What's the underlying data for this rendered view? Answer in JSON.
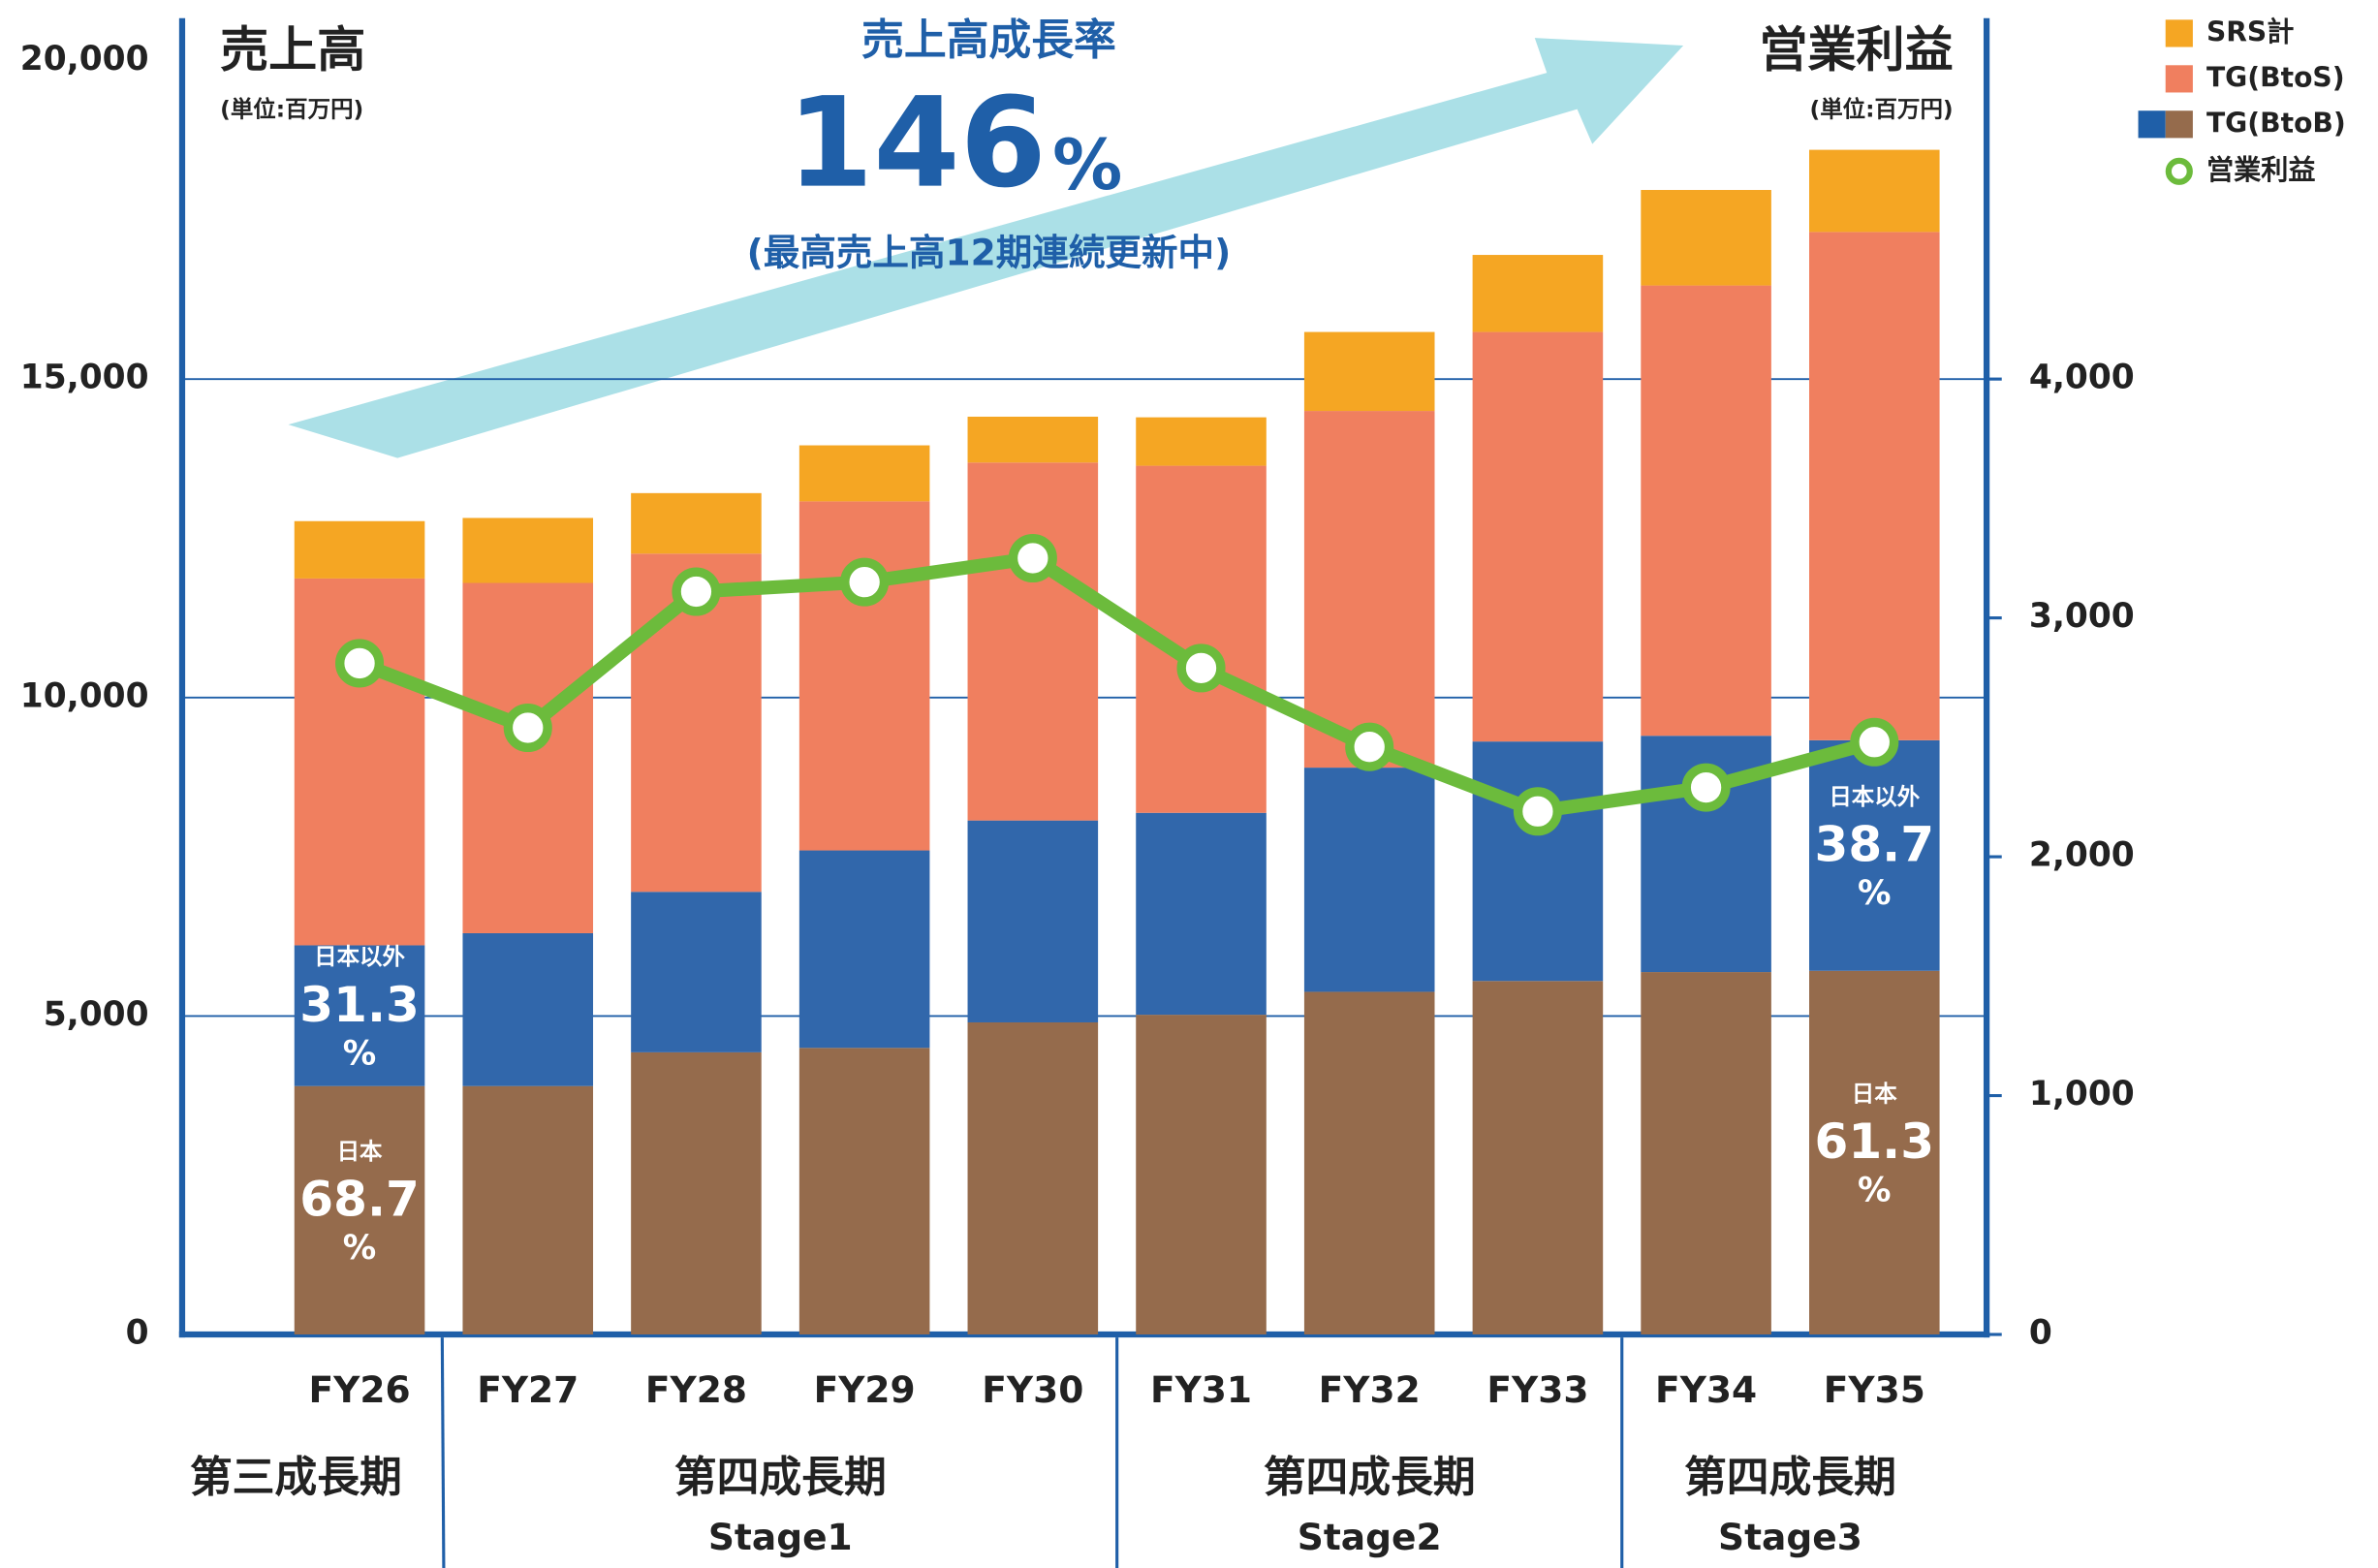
{
  "chart_data": {
    "type": "stacked_bar_line",
    "title": "売上高",
    "unit_note": "(単位:百万円)",
    "y2_title": "営業利益",
    "y2_unit_note": "(単位:百万円)",
    "growth": {
      "label": "売上高成長率",
      "value": 146,
      "unit": "%",
      "note": "(最高売上高12期連続更新中)"
    },
    "categories": [
      "FY26",
      "FY27",
      "FY28",
      "FY29",
      "FY30",
      "FY31",
      "FY32",
      "FY33",
      "FY34",
      "FY35"
    ],
    "groups": [
      {
        "label": "第三成長期",
        "count": 1
      },
      {
        "label": "第四成長期",
        "sub": "Stage1",
        "count": 4
      },
      {
        "label": "第四成長期",
        "sub": "Stage2",
        "count": 3
      },
      {
        "label": "第四成長期",
        "sub": "Stage3",
        "count": 2
      }
    ],
    "series": [
      {
        "name": "日本",
        "color": "#956b4c",
        "values": [
          3900,
          3900,
          4430,
          4500,
          4900,
          5020,
          5380,
          5550,
          5690,
          5710
        ]
      },
      {
        "name": "日本以外",
        "color": "#3167ab",
        "values": [
          2210,
          2400,
          2520,
          3100,
          3170,
          3170,
          3520,
          3760,
          3710,
          3620
        ]
      },
      {
        "name": "TG(BtoS)",
        "color": "#f07f5f",
        "values": [
          5760,
          5500,
          5310,
          5480,
          5620,
          5450,
          5600,
          6430,
          7070,
          7980
        ]
      },
      {
        "name": "SRS計",
        "color": "#f5a623",
        "values": [
          900,
          1020,
          950,
          880,
          720,
          760,
          1240,
          1210,
          1500,
          1290
        ]
      },
      {
        "name": "営業利益",
        "color": "#6cbb3c",
        "axis": "y2",
        "type": "line",
        "values": [
          2810,
          2540,
          3110,
          3150,
          3250,
          2790,
          2460,
          2190,
          2290,
          2480
        ]
      }
    ],
    "legend_group": {
      "name": "TG(BtoB)",
      "colors": [
        "#1f5fa8",
        "#956b4c"
      ]
    },
    "share_labels": [
      {
        "series": "日本以外",
        "value": 31.3
      },
      {
        "series": "日本",
        "value": 68.7
      },
      {
        "series": "日本以外",
        "value": 38.7
      },
      {
        "series": "日本",
        "value": 61.3
      }
    ],
    "share_unit": "%",
    "ylim": [
      0,
      20000
    ],
    "yticks": [
      0,
      {
        "value": 5000,
        "label": "5,000"
      },
      {
        "value": 10000,
        "label": "10,000"
      },
      {
        "value": 15000,
        "label": "15,000"
      },
      {
        "value": 20000,
        "label": "20,000"
      }
    ],
    "y2lim": [
      0,
      5333
    ],
    "y2ticks": [
      0,
      {
        "value": 1000,
        "label": "1,000"
      },
      {
        "value": 2000,
        "label": "2,000"
      },
      {
        "value": 3000,
        "label": "3,000"
      },
      {
        "value": 4000,
        "label": "4,000"
      }
    ],
    "grid": true
  }
}
